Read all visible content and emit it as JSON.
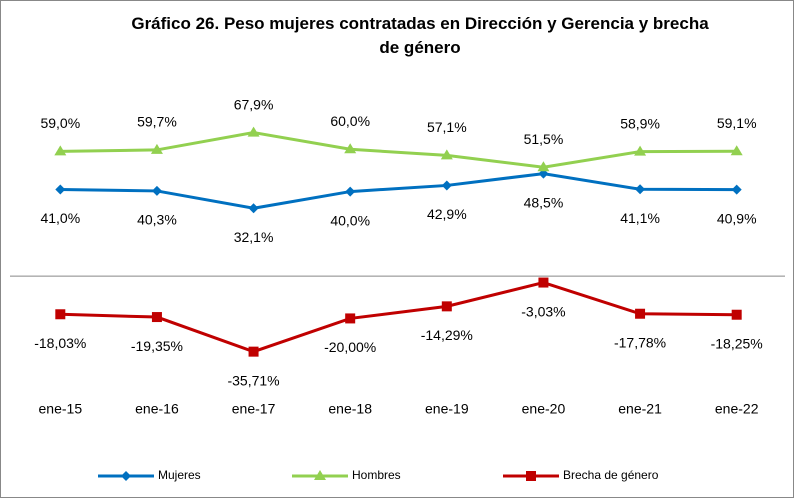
{
  "chart_data": {
    "type": "line",
    "title": "Gráfico 26. Peso mujeres contratadas en Dirección y Gerencia y brecha de género",
    "categories": [
      "ene-15",
      "ene-16",
      "ene-17",
      "ene-18",
      "ene-19",
      "ene-20",
      "ene-21",
      "ene-22"
    ],
    "ylim": [
      -60,
      80
    ],
    "series": [
      {
        "name": "Mujeres",
        "color": "#0070c0",
        "marker": "diamond",
        "label_position": "below",
        "values": [
          41.0,
          40.3,
          32.1,
          40.0,
          42.9,
          48.5,
          41.1,
          40.9
        ],
        "value_labels": [
          "41,0%",
          "40,3%",
          "32,1%",
          "40,0%",
          "42,9%",
          "48,5%",
          "41,1%",
          "40,9%"
        ]
      },
      {
        "name": "Hombres",
        "color": "#92d050",
        "marker": "triangle",
        "label_position": "above",
        "values": [
          59.0,
          59.7,
          67.9,
          60.0,
          57.1,
          51.5,
          58.9,
          59.1
        ],
        "value_labels": [
          "59,0%",
          "59,7%",
          "67,9%",
          "60,0%",
          "57,1%",
          "51,5%",
          "58,9%",
          "59,1%"
        ]
      },
      {
        "name": "Brecha de género",
        "color": "#c00000",
        "marker": "square",
        "label_position": "below",
        "values": [
          -18.03,
          -19.35,
          -35.71,
          -20.0,
          -14.29,
          -3.03,
          -17.78,
          -18.25
        ],
        "value_labels": [
          "-18,03%",
          "-19,35%",
          "-35,71%",
          "-20,00%",
          "-14,29%",
          "-3,03%",
          "-17,78%",
          "-18,25%"
        ]
      }
    ],
    "legend": "bottom"
  }
}
